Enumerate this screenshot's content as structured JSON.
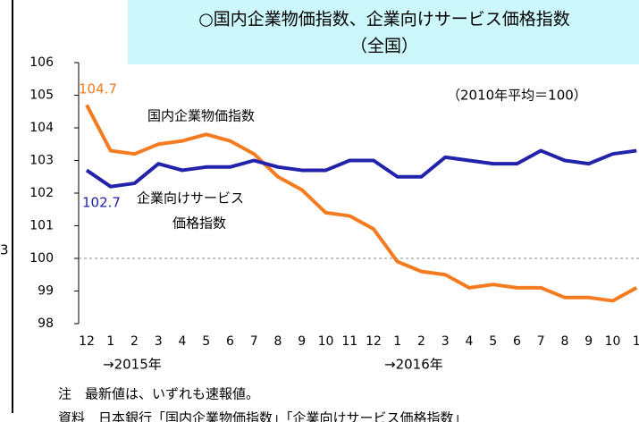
{
  "chart_data": {
    "type": "line",
    "title": "○国内企業物価指数、企業向けサービス価格指数",
    "subtitle": "（全国）",
    "categories": [
      "12",
      "1",
      "2",
      "3",
      "4",
      "5",
      "6",
      "7",
      "8",
      "9",
      "10",
      "11",
      "12",
      "1",
      "2",
      "3",
      "4",
      "5",
      "6",
      "7",
      "8",
      "9",
      "10",
      "1"
    ],
    "series": [
      {
        "name": "国内企業物価指数",
        "color": "#f47b20",
        "values": [
          104.7,
          103.3,
          103.2,
          103.5,
          103.6,
          103.8,
          103.6,
          103.2,
          102.5,
          102.1,
          101.4,
          101.3,
          100.9,
          99.9,
          99.6,
          99.5,
          99.1,
          99.2,
          99.1,
          99.1,
          98.8,
          98.8,
          98.7,
          99.1
        ]
      },
      {
        "name": "企業向けサービス価格指数",
        "color": "#2222aa",
        "values": [
          102.7,
          102.2,
          102.3,
          102.9,
          102.7,
          102.8,
          102.8,
          103.0,
          102.8,
          102.7,
          102.7,
          103.0,
          103.0,
          102.5,
          102.5,
          103.1,
          103.0,
          102.9,
          102.9,
          103.3,
          103.0,
          102.9,
          103.2,
          103.3
        ]
      }
    ],
    "ylim": [
      98,
      106
    ],
    "yticks": [
      98,
      99,
      100,
      101,
      102,
      103,
      104,
      105,
      106
    ],
    "reference_line": 100,
    "annotations": [
      "104.7",
      "102.7",
      "国内企業物価指数",
      "企業向けサービス",
      "価格指数",
      "（2010年平均＝100）",
      "→2015年",
      "→2016年",
      "3"
    ],
    "notes": [
      "注　最新値は、いずれも速報値。",
      "資料　日本銀行「国内企業物価指数」「企業向けサービス価格指数」"
    ]
  }
}
